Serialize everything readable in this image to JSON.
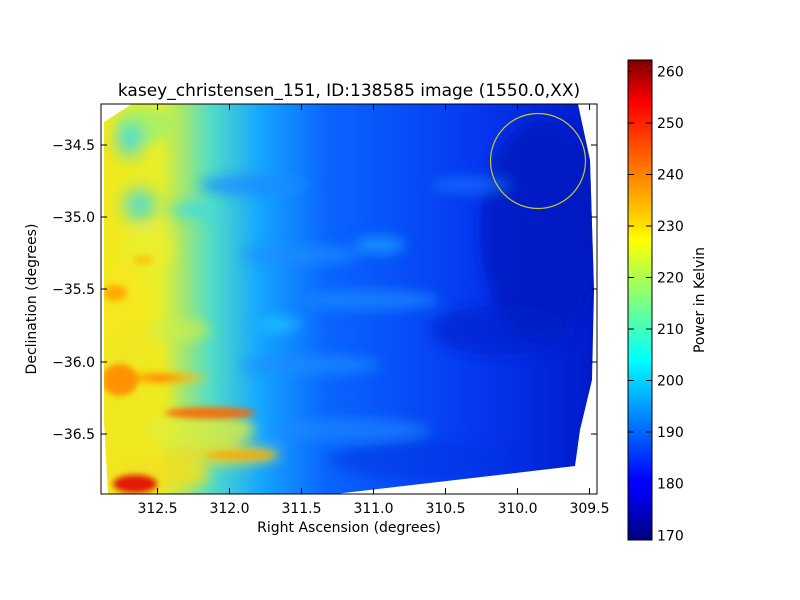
{
  "chart_data": {
    "type": "heatmap",
    "title": "kasey_christensen_151, ID:138585 image (1550.0,XX)",
    "xlabel": "Right Ascension (degrees)",
    "ylabel": "Declination (degrees)",
    "x_ticks": [
      "312.5",
      "312.0",
      "311.5",
      "311.0",
      "310.5",
      "310.0",
      "309.5"
    ],
    "y_ticks": [
      "−34.5",
      "−35.0",
      "−35.5",
      "−36.0",
      "−36.5"
    ],
    "xlim": [
      312.85,
      309.42
    ],
    "ylim": [
      -36.92,
      -34.22
    ],
    "colorbar": {
      "label": "Power in Kelvin",
      "ticks": [
        "170",
        "180",
        "190",
        "200",
        "210",
        "220",
        "230",
        "240",
        "250",
        "260"
      ],
      "range": [
        168.5,
        262.5
      ],
      "colormap": "jet"
    },
    "circle_annotation": {
      "ra": 309.82,
      "dec": -34.62,
      "color": "#c8c832"
    },
    "hot_spots": [
      {
        "ra": 312.45,
        "dec": -36.12,
        "value": 236
      },
      {
        "ra": 312.2,
        "dec": -36.38,
        "value": 238
      },
      {
        "ra": 312.55,
        "dec": -36.85,
        "value": 252
      },
      {
        "ra": 312.7,
        "dec": -35.55,
        "value": 232
      },
      {
        "ra": 312.45,
        "dec": -35.3,
        "value": 226
      },
      {
        "ra": 312.0,
        "dec": -36.65,
        "value": 228
      },
      {
        "ra": 312.55,
        "dec": -34.32,
        "value": 222
      }
    ]
  }
}
